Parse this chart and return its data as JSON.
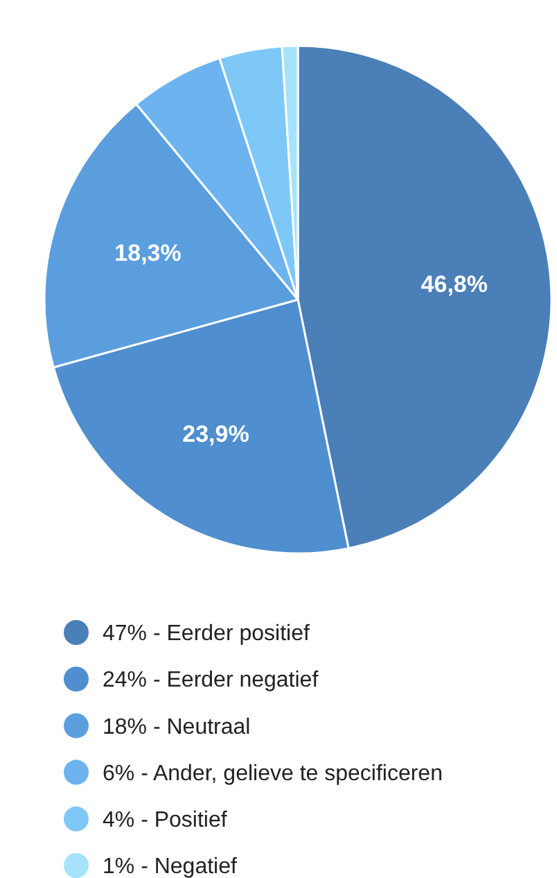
{
  "chart_data": {
    "type": "pie",
    "categories": [
      "47% - Eerder positief",
      "24% - Eerder negatief",
      "18% - Neutraal",
      "6% - Ander, gelieve te specificeren",
      "4% - Positief",
      "1% - Negatief"
    ],
    "values": [
      46.8,
      23.9,
      18.3,
      6,
      4,
      1
    ],
    "colors": [
      "#4a7fb8",
      "#4f8ecf",
      "#5b9ede",
      "#6cb3ef",
      "#7ec8f8",
      "#a6e2fb"
    ],
    "value_labels": [
      "46,8%",
      "23,9%",
      "18,3%",
      null,
      null,
      null
    ],
    "legend": "bottom"
  }
}
